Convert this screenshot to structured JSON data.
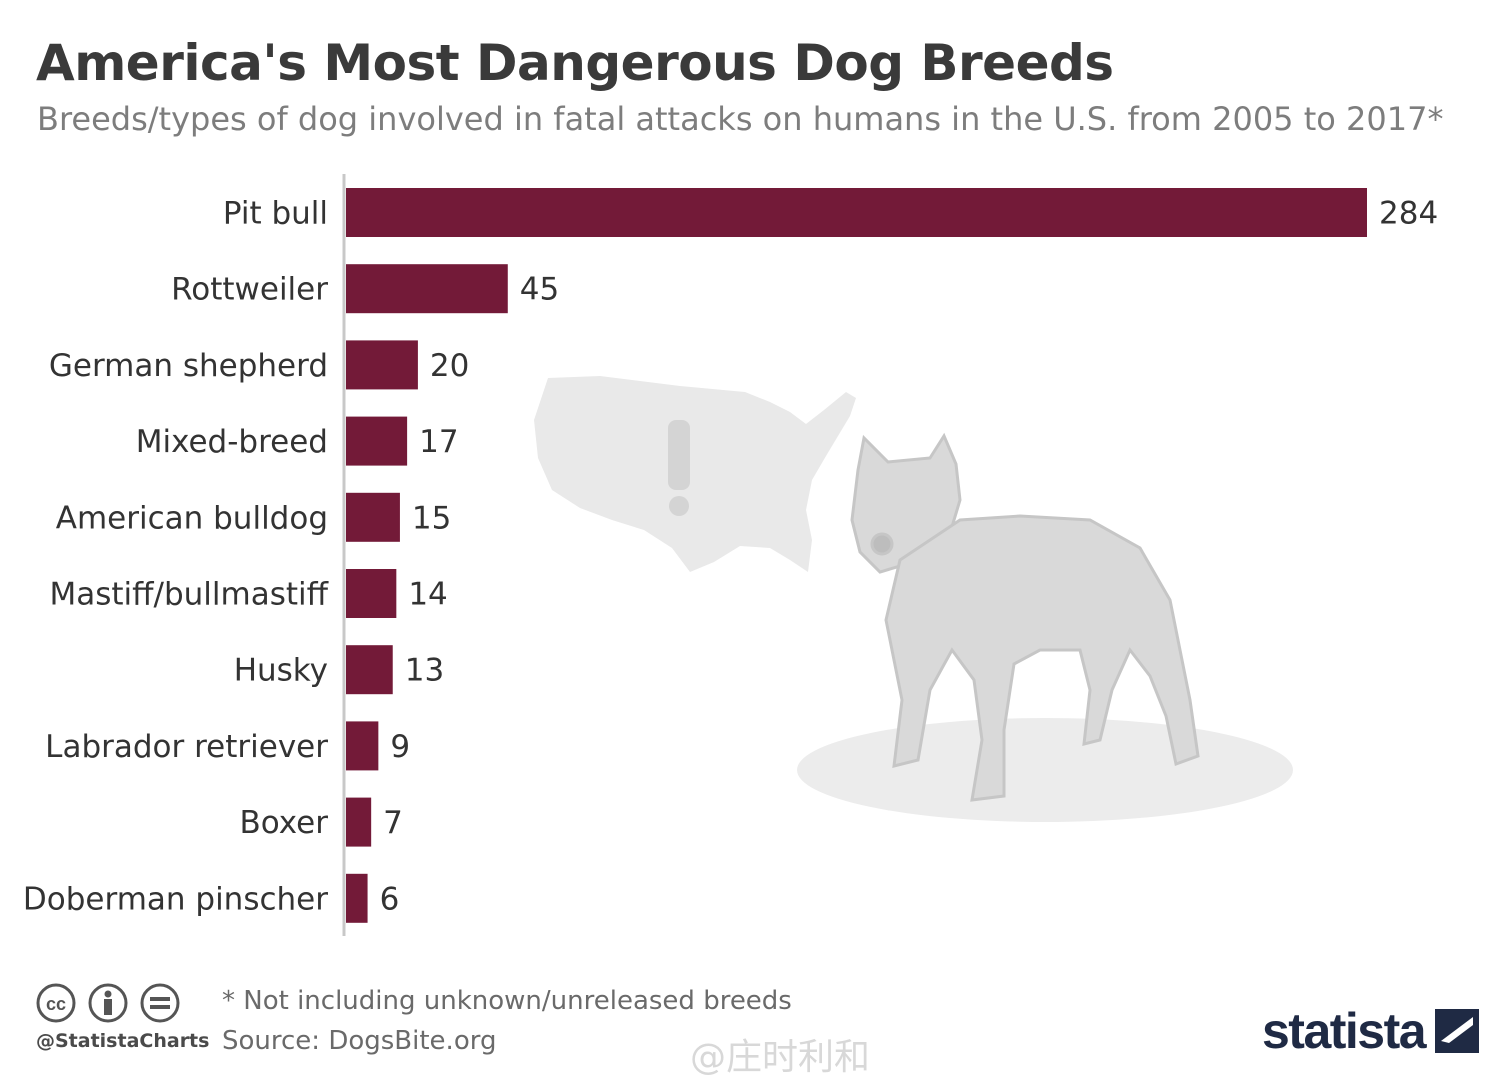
{
  "title": "America's Most Dangerous Dog Breeds",
  "subtitle": "Breeds/types of dog involved in fatal attacks on humans in the U.S. from 2005 to 2017*",
  "footnote": "* Not including unknown/unreleased breeds",
  "source": "Source: DogsBite.org",
  "handle": "@StatistaCharts",
  "brand": "statista",
  "watermark": "@庄时利和",
  "colors": {
    "bar": "#731a38",
    "illustration": "#e6e6e6"
  },
  "icons": [
    "creative-commons-icon",
    "attribution-icon",
    "no-derivatives-icon",
    "map-silhouette-icon",
    "dog-silhouette-icon"
  ],
  "chart_data": {
    "type": "bar",
    "orientation": "horizontal",
    "categories": [
      "Pit bull",
      "Rottweiler",
      "German shepherd",
      "Mixed-breed",
      "American bulldog",
      "Mastiff/bullmastiff",
      "Husky",
      "Labrador retriever",
      "Boxer",
      "Doberman pinscher"
    ],
    "values": [
      284,
      45,
      20,
      17,
      15,
      14,
      13,
      9,
      7,
      6
    ],
    "xlim": [
      0,
      284
    ],
    "grid": false,
    "legend": "none"
  }
}
